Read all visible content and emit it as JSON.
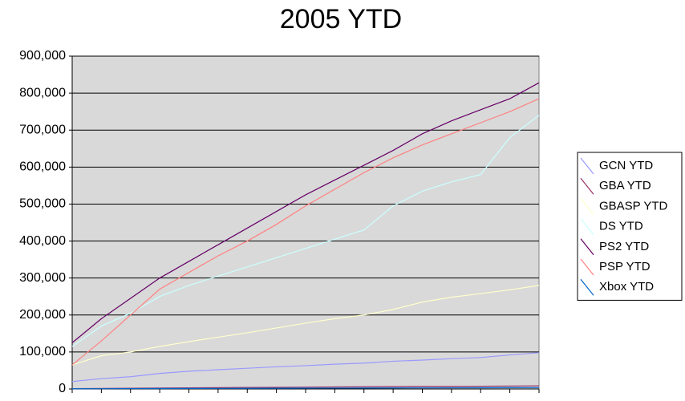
{
  "chart_data": {
    "type": "line",
    "title": "2005 YTD",
    "categories": [
      null,
      null,
      null,
      null,
      null,
      null,
      null,
      null,
      null,
      null,
      null,
      null,
      null,
      null,
      null,
      null,
      null
    ],
    "series": [
      {
        "name": "GCN YTD",
        "color": "#9999ff",
        "values": [
          20000,
          28000,
          33000,
          42000,
          48000,
          52000,
          56000,
          60000,
          63000,
          67000,
          70000,
          75000,
          78000,
          82000,
          85000,
          92000,
          98000
        ]
      },
      {
        "name": "GBA YTD",
        "color": "#993366",
        "values": [
          1000,
          1500,
          2000,
          2500,
          3000,
          3500,
          4000,
          4500,
          5000,
          5500,
          6000,
          6500,
          7000,
          7000,
          7500,
          8000,
          8500
        ]
      },
      {
        "name": "GBASP YTD",
        "color": "#ffffcc",
        "values": [
          65000,
          90000,
          100000,
          115000,
          128000,
          140000,
          152000,
          165000,
          178000,
          190000,
          200000,
          215000,
          235000,
          248000,
          258000,
          268000,
          280000
        ]
      },
      {
        "name": "DS YTD",
        "color": "#ccffff",
        "values": [
          115000,
          170000,
          205000,
          250000,
          280000,
          305000,
          330000,
          355000,
          380000,
          405000,
          430000,
          495000,
          535000,
          560000,
          580000,
          680000,
          740000
        ]
      },
      {
        "name": "PS2 YTD",
        "color": "#660066",
        "values": [
          125000,
          190000,
          245000,
          300000,
          345000,
          390000,
          435000,
          480000,
          525000,
          565000,
          605000,
          645000,
          690000,
          725000,
          755000,
          785000,
          828000
        ]
      },
      {
        "name": "PSP YTD",
        "color": "#ff8080",
        "values": [
          65000,
          130000,
          200000,
          270000,
          315000,
          360000,
          400000,
          445000,
          495000,
          540000,
          585000,
          625000,
          660000,
          690000,
          720000,
          750000,
          785000
        ]
      },
      {
        "name": "Xbox YTD",
        "color": "#0066cc",
        "values": [
          500,
          700,
          900,
          1100,
          1300,
          1500,
          1700,
          1900,
          2100,
          2300,
          2500,
          2700,
          2900,
          3100,
          3300,
          3500,
          3700
        ]
      }
    ],
    "ylim": [
      0,
      900000
    ],
    "yticks": [
      0,
      {
        "value": 100000,
        "label": "100,000"
      },
      {
        "value": 200000,
        "label": "200,000"
      },
      {
        "value": 300000,
        "label": "300,000"
      },
      {
        "value": 400000,
        "label": "400,000"
      },
      {
        "value": 500000,
        "label": "500,000"
      },
      {
        "value": 600000,
        "label": "600,000"
      },
      {
        "value": 700000,
        "label": "700,000"
      },
      {
        "value": 800000,
        "label": "800,000"
      },
      {
        "value": 900000,
        "label": "900,000"
      }
    ],
    "grid": true,
    "legend": "right",
    "plot_background": "#d9d9d9"
  }
}
